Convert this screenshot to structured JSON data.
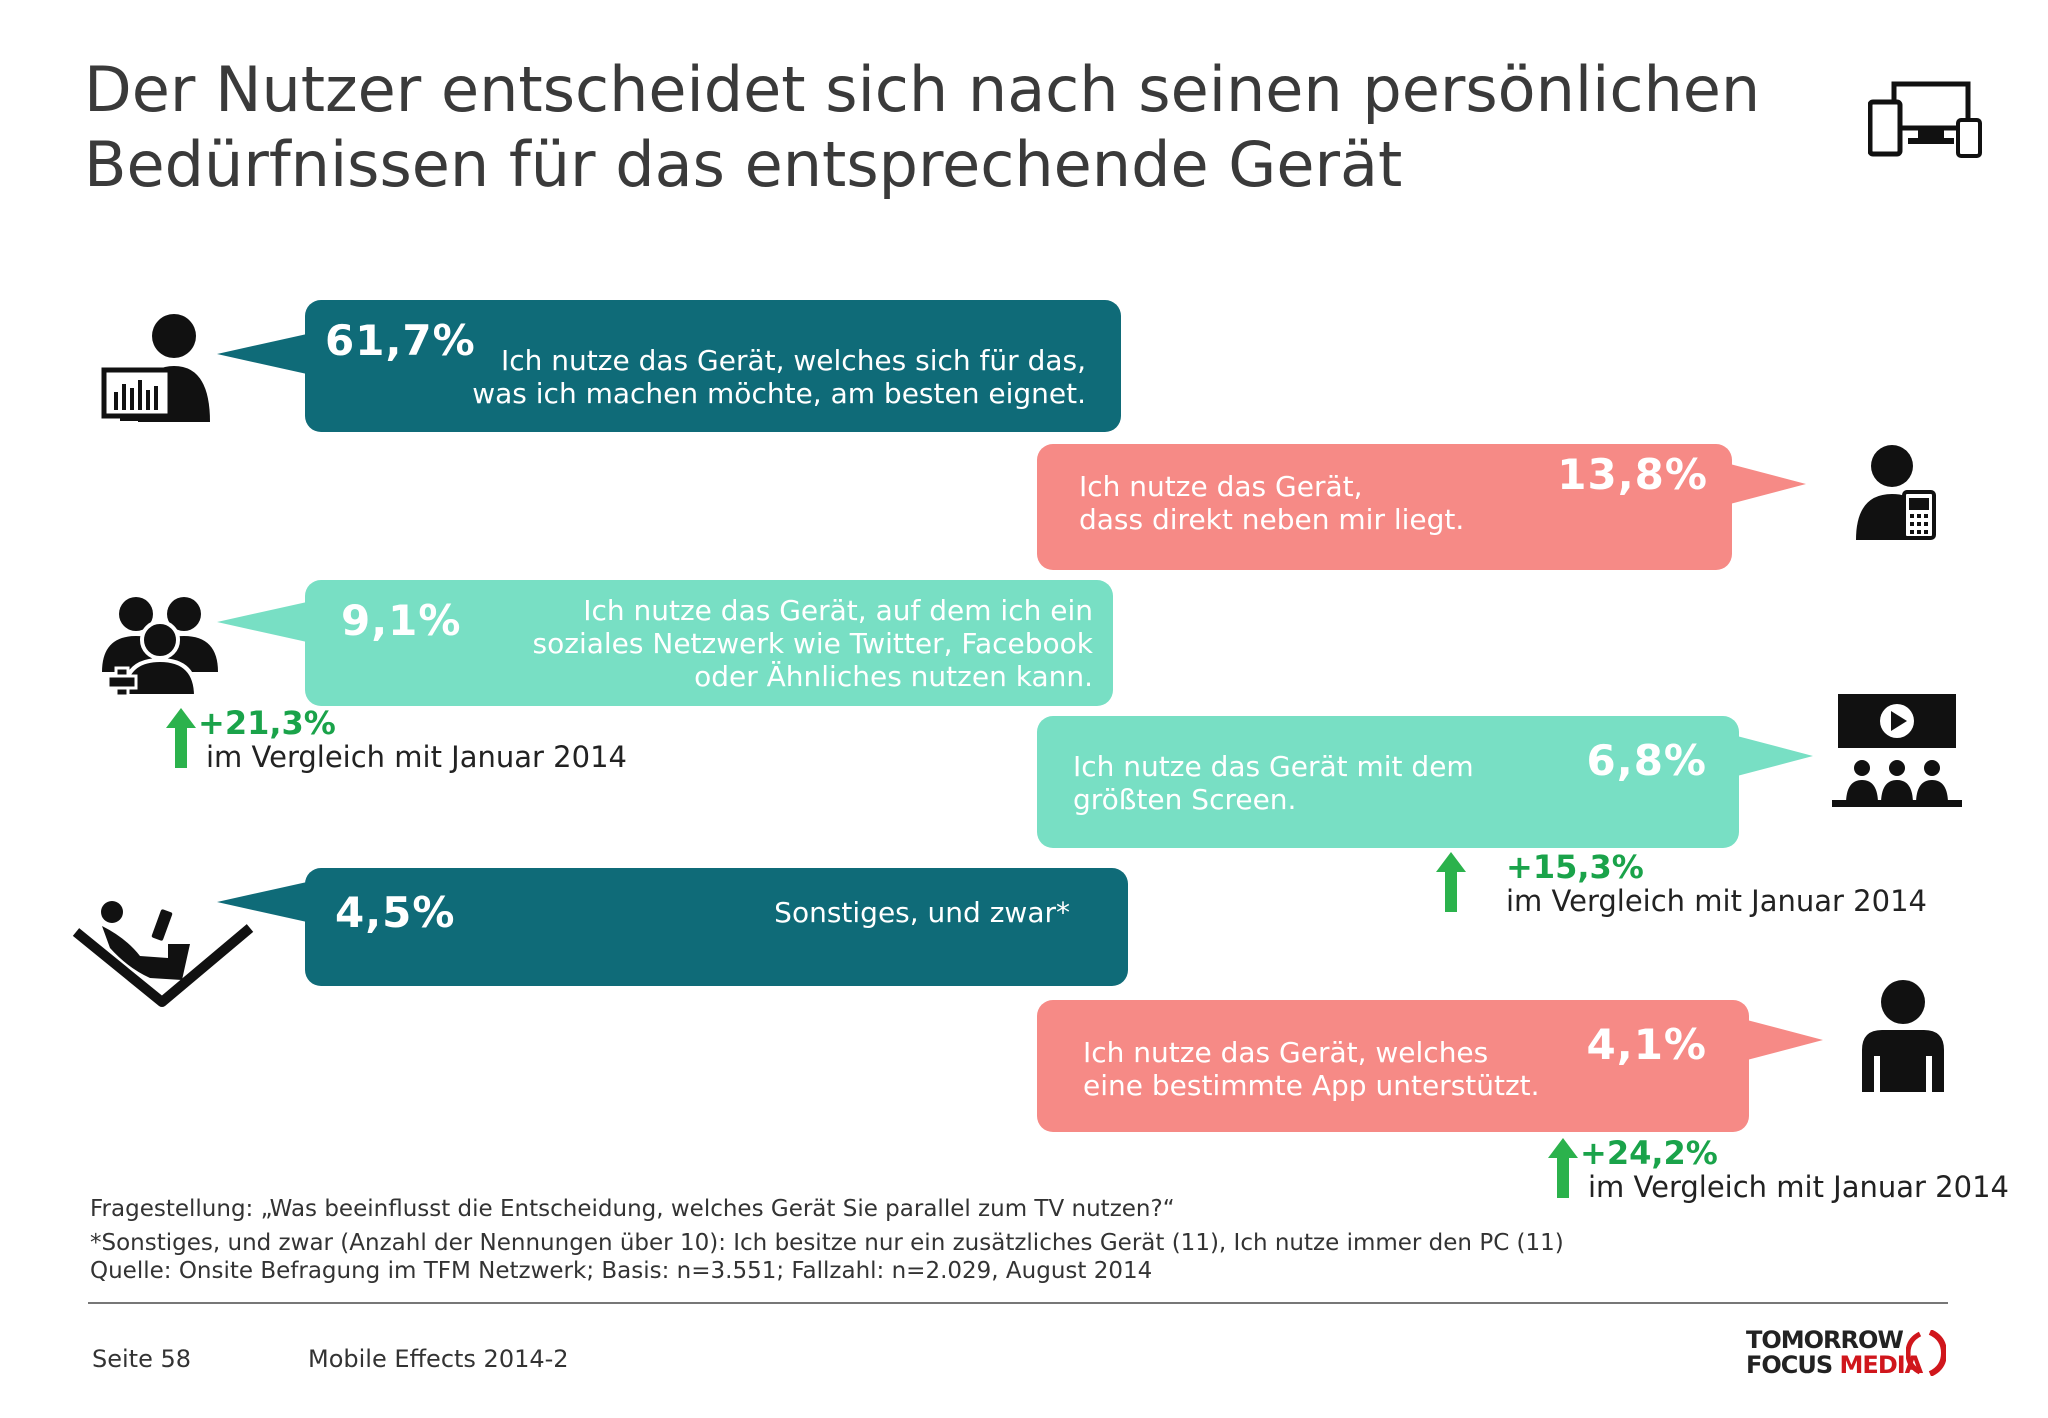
{
  "title": {
    "line1": "Der Nutzer entscheidet sich nach seinen persönlichen",
    "line2": "Bedürfnissen für das entsprechende Gerät"
  },
  "bubbles": [
    {
      "pct": "61,7%",
      "text1": "Ich nutze das Gerät, welches sich für das,",
      "text2": "was ich machen möchte, am besten eignet.",
      "color": "#0f6b78",
      "icon": "user-computer-icon"
    },
    {
      "pct": "13,8%",
      "text1": "Ich nutze das Gerät,",
      "text2": "dass direkt neben mir liegt.",
      "color": "#f68a86",
      "icon": "user-phone-icon"
    },
    {
      "pct": "9,1%",
      "text1": "Ich nutze das Gerät, auf dem ich ein",
      "text2": "soziales Netzwerk wie Twitter, Facebook",
      "text3": "oder Ähnliches nutzen kann.",
      "color": "#78dfc4",
      "icon": "social-network-users-icon"
    },
    {
      "pct": "6,8%",
      "text1": "Ich nutze das Gerät mit dem",
      "text2": "größten Screen.",
      "color": "#78dfc4",
      "icon": "cinema-screen-icon"
    },
    {
      "pct": "4,5%",
      "text1": "Sonstiges, und zwar*",
      "color": "#0f6b78",
      "icon": "person-reclining-icon"
    },
    {
      "pct": "4,1%",
      "text1": "Ich nutze das Gerät, welches",
      "text2": "eine bestimmte App unterstützt.",
      "color": "#f68a86",
      "icon": "user-icon"
    }
  ],
  "changes": [
    {
      "value": "+21,3%",
      "label": "im Vergleich mit Januar 2014"
    },
    {
      "value": "+15,3%",
      "label": "im Vergleich mit Januar 2014"
    },
    {
      "value": "+24,2%",
      "label": "im Vergleich mit Januar 2014"
    }
  ],
  "footnotes": {
    "question": "Fragestellung: „Was beeinflusst die Entscheidung, welches Gerät Sie parallel zum TV nutzen?“",
    "other": "*Sonstiges, und zwar (Anzahl der Nennungen über 10): Ich besitze nur ein zusätzliches Gerät (11), Ich nutze immer den PC (11)",
    "source": "Quelle: Onsite Befragung im TFM Netzwerk; Basis: n=3.551; Fallzahl: n=2.029, August 2014"
  },
  "footer": {
    "page": "Seite 58",
    "report": "Mobile Effects 2014-2",
    "logo_line1": "TOMORROW",
    "logo_line2a": "FOCUS",
    "logo_line2b": "MEDIA"
  },
  "colors": {
    "teal": "#0f6b78",
    "coral": "#f68a86",
    "mint": "#78dfc4",
    "increase": "#1aa34a"
  }
}
